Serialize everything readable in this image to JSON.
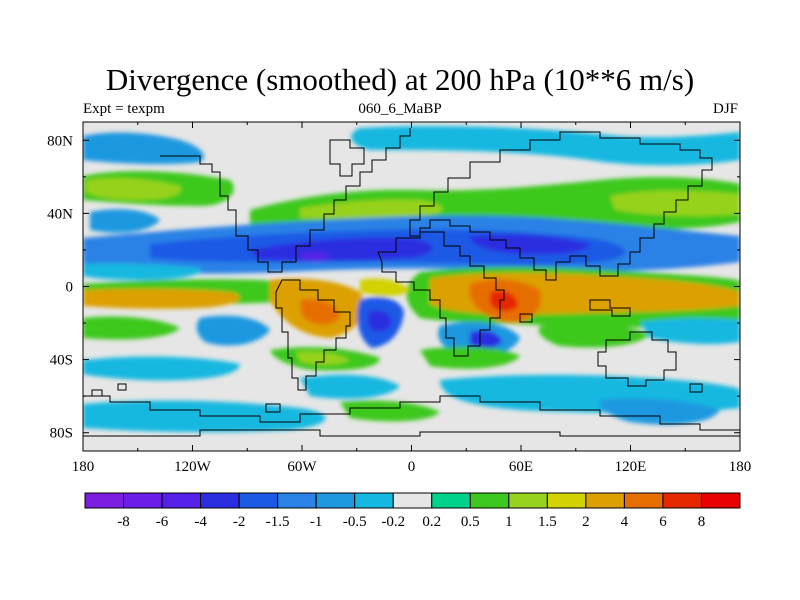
{
  "title": "Divergence (smoothed) at 200 hPa (10**6 m/s)",
  "subtitle_left": "Expt = texpm",
  "subtitle_center": "060_6_MaBP",
  "subtitle_right": "DJF",
  "chart_data": {
    "type": "heatmap",
    "variable": "Divergence (smoothed) at 200 hPa",
    "units": "10**6 m/s",
    "experiment": "texpm",
    "case": "060_6_MaBP",
    "season": "DJF",
    "lon_range": [
      -180,
      180
    ],
    "lat_range": [
      -90,
      90
    ],
    "x_ticks": [
      {
        "value": -180,
        "label": "180"
      },
      {
        "value": -120,
        "label": "120W"
      },
      {
        "value": -60,
        "label": "60W"
      },
      {
        "value": 0,
        "label": "0"
      },
      {
        "value": 60,
        "label": "60E"
      },
      {
        "value": 120,
        "label": "120E"
      },
      {
        "value": 180,
        "label": "180"
      }
    ],
    "y_ticks": [
      {
        "value": 80,
        "label": "80N"
      },
      {
        "value": 40,
        "label": "40N"
      },
      {
        "value": 0,
        "label": "0"
      },
      {
        "value": -40,
        "label": "40S"
      },
      {
        "value": -80,
        "label": "80S"
      }
    ],
    "contour_levels": [
      "-8",
      "-6",
      "-4",
      "-2",
      "-1.5",
      "-1",
      "-0.5",
      "-0.2",
      "0.2",
      "0.5",
      "1",
      "1.5",
      "2",
      "4",
      "6",
      "8"
    ],
    "colors": [
      "#7b1ee0",
      "#6a1ee8",
      "#5520e8",
      "#2a2ee0",
      "#1c5ae6",
      "#2a82e6",
      "#1e98e0",
      "#14b8e0",
      "#e6e6e6",
      "#00d28c",
      "#3cc81e",
      "#96d21e",
      "#d2d200",
      "#dca000",
      "#e66e00",
      "#e62800",
      "#e60000"
    ],
    "features": [
      {
        "name": "equatorial Africa / Indian Ocean divergence maximum",
        "lon": 55,
        "lat": -10,
        "value": 6
      },
      {
        "name": "South America divergence",
        "lon": -50,
        "lat": -15,
        "value": 3
      },
      {
        "name": "northern subtropical convergence band",
        "lon_span": [
          -150,
          130
        ],
        "lat": 20,
        "value": -3
      },
      {
        "name": "southern subtropics convergence",
        "lon": -15,
        "lat": -25,
        "value": -2
      },
      {
        "name": "northern midlatitude divergence belt",
        "lon_span": [
          -180,
          180
        ],
        "lat": 40,
        "value": 1.2
      }
    ]
  }
}
